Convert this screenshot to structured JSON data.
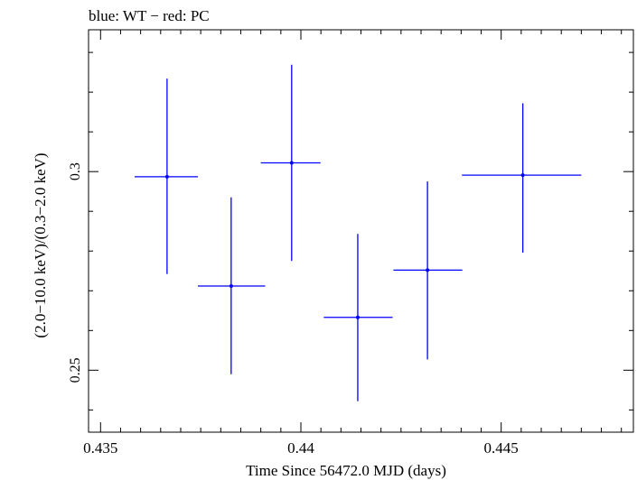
{
  "chart_data": {
    "type": "scatter",
    "title": "blue: WT − red: PC",
    "xlabel": "Time Since 56472.0 MJD (days)",
    "ylabel": "(2.0−10.0 keV)/(0.3−2.0 keV)",
    "xlim": [
      0.4347,
      0.4483
    ],
    "ylim": [
      0.2344,
      0.3357
    ],
    "x_ticks": [
      {
        "value": 0.435,
        "label": "0.435"
      },
      {
        "value": 0.44,
        "label": "0.44"
      },
      {
        "value": 0.445,
        "label": "0.445"
      }
    ],
    "y_ticks": [
      {
        "value": 0.25,
        "label": "0.25"
      },
      {
        "value": 0.3,
        "label": "0.3"
      }
    ],
    "grid": false,
    "series": [
      {
        "color": "#0000ff",
        "points": [
          {
            "x": 0.43666,
            "y": 0.2987,
            "xerr_lo": 0.00081,
            "xerr_hi": 0.00077,
            "yerr_lo": 0.0245,
            "yerr_hi": 0.0247
          },
          {
            "x": 0.43826,
            "y": 0.2712,
            "xerr_lo": 0.00083,
            "xerr_hi": 0.00085,
            "yerr_lo": 0.0222,
            "yerr_hi": 0.0223
          },
          {
            "x": 0.43977,
            "y": 0.3022,
            "xerr_lo": 0.00077,
            "xerr_hi": 0.00072,
            "yerr_lo": 0.0247,
            "yerr_hi": 0.0247
          },
          {
            "x": 0.44142,
            "y": 0.2633,
            "xerr_lo": 0.00085,
            "xerr_hi": 0.00087,
            "yerr_lo": 0.0211,
            "yerr_hi": 0.021
          },
          {
            "x": 0.44316,
            "y": 0.2752,
            "xerr_lo": 0.00085,
            "xerr_hi": 0.00087,
            "yerr_lo": 0.0225,
            "yerr_hi": 0.0223
          },
          {
            "x": 0.44554,
            "y": 0.2991,
            "xerr_lo": 0.00152,
            "xerr_hi": 0.00146,
            "yerr_lo": 0.0195,
            "yerr_hi": 0.0181
          }
        ]
      }
    ]
  }
}
